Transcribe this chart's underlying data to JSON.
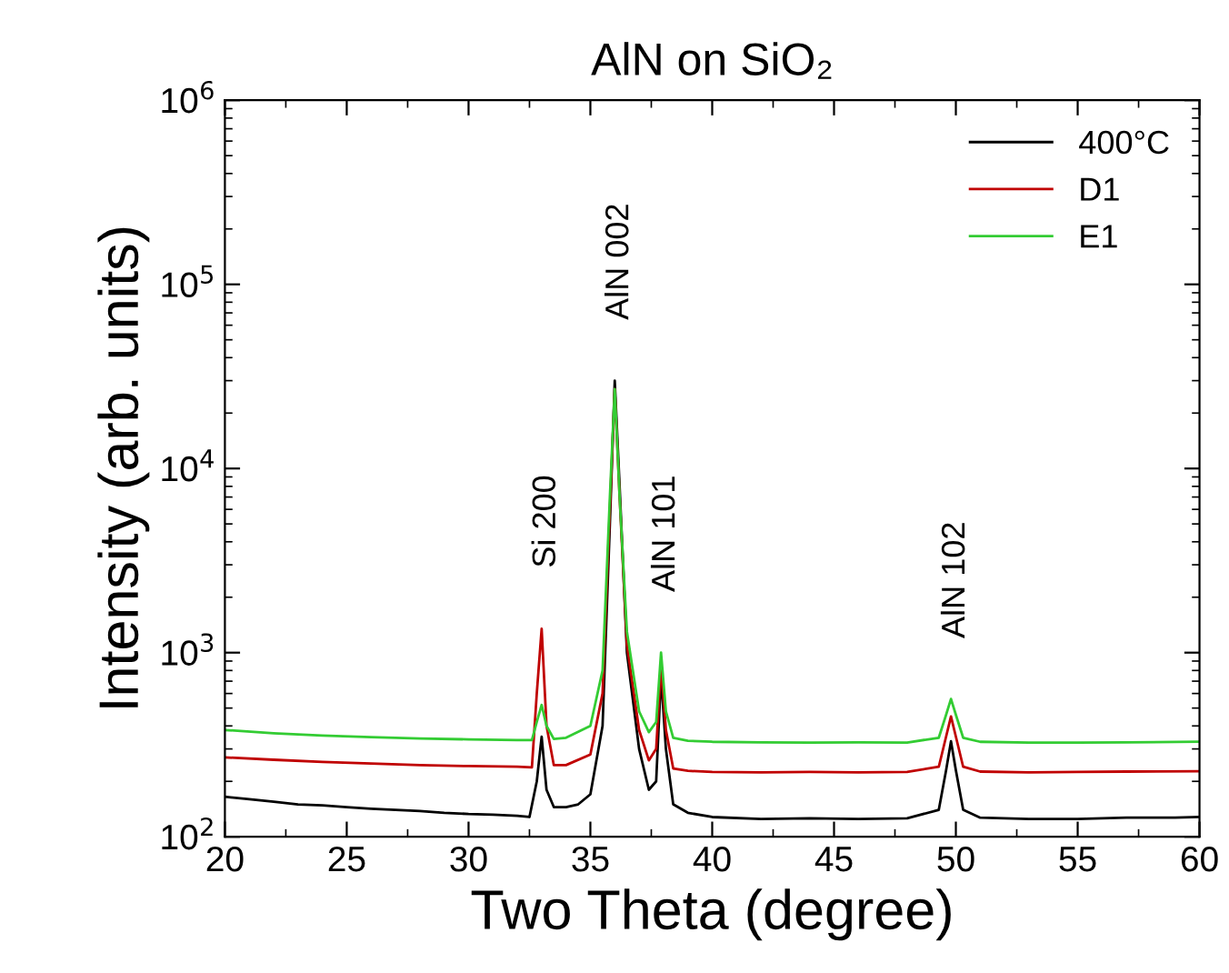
{
  "chart_data": {
    "type": "line",
    "title": "AlN on SiO₂",
    "xlabel": "Two Theta (degree)",
    "ylabel": "Intensity (arb. units)",
    "log": "y",
    "grid": false,
    "legend": "top right",
    "marker": "none",
    "line_style": "solid",
    "xlim": [
      20,
      60
    ],
    "xticks": [
      20,
      25,
      30,
      35,
      40,
      45,
      50,
      55,
      60
    ],
    "ylim": [
      100,
      1000000
    ],
    "yticks": [
      {
        "value": 100,
        "label": "10$^{2}$"
      },
      {
        "value": 1000,
        "label": "10$^{3}$"
      },
      {
        "value": 10000,
        "label": "10$^{4}$"
      },
      {
        "value": 100000,
        "label": "10$^{5}$"
      },
      {
        "value": 1000000,
        "label": "10$^{6}$"
      }
    ],
    "series": [
      {
        "name": "400°C",
        "color": "#000000",
        "x": [
          20,
          21,
          22,
          23,
          24,
          25,
          26,
          27,
          28,
          29,
          30,
          31,
          32,
          32.5,
          32.8,
          33.0,
          33.2,
          33.5,
          34,
          34.5,
          35,
          35.5,
          35.8,
          36.0,
          36.2,
          36.5,
          37,
          37.4,
          37.7,
          37.9,
          38.1,
          38.4,
          39,
          40,
          42,
          44,
          46,
          48,
          49.3,
          49.6,
          49.8,
          50.0,
          50.3,
          51,
          53,
          55,
          57,
          59,
          60
        ],
        "values": [
          165,
          160,
          155,
          150,
          148,
          145,
          142,
          140,
          138,
          135,
          133,
          132,
          130,
          128,
          200,
          350,
          180,
          145,
          145,
          150,
          170,
          400,
          5000,
          30000,
          8000,
          1000,
          300,
          180,
          200,
          750,
          300,
          150,
          135,
          128,
          125,
          126,
          125,
          126,
          140,
          230,
          330,
          230,
          140,
          127,
          125,
          125,
          127,
          127,
          128
        ]
      },
      {
        "name": "D1",
        "color": "#c00000",
        "x": [
          20,
          22,
          24,
          26,
          28,
          30,
          32,
          32.6,
          32.8,
          33.0,
          33.2,
          33.5,
          34,
          35,
          35.5,
          35.8,
          36.0,
          36.2,
          36.5,
          37,
          37.4,
          37.7,
          37.9,
          38.1,
          38.4,
          39,
          40,
          42,
          44,
          46,
          48,
          49.3,
          49.6,
          49.8,
          50.0,
          50.3,
          51,
          53,
          55,
          57,
          60
        ],
        "values": [
          270,
          262,
          255,
          250,
          245,
          242,
          240,
          238,
          600,
          1350,
          400,
          245,
          245,
          280,
          600,
          6000,
          27000,
          7000,
          1100,
          380,
          260,
          300,
          850,
          380,
          235,
          228,
          225,
          224,
          225,
          224,
          225,
          240,
          350,
          450,
          350,
          240,
          226,
          224,
          225,
          226,
          227
        ]
      },
      {
        "name": "E1",
        "color": "#33cc33",
        "x": [
          20,
          22,
          24,
          26,
          28,
          30,
          32,
          32.6,
          32.8,
          33.0,
          33.2,
          33.5,
          34,
          35,
          35.5,
          35.8,
          36.0,
          36.2,
          36.5,
          37,
          37.4,
          37.7,
          37.9,
          38.1,
          38.4,
          39,
          40,
          42,
          44,
          46,
          48,
          49.3,
          49.6,
          49.8,
          50.0,
          50.3,
          51,
          53,
          55,
          57,
          60
        ],
        "values": [
          380,
          365,
          355,
          348,
          342,
          338,
          335,
          335,
          420,
          520,
          400,
          340,
          345,
          400,
          800,
          7000,
          27000,
          7000,
          1300,
          480,
          370,
          420,
          1000,
          480,
          345,
          332,
          328,
          326,
          325,
          326,
          325,
          345,
          460,
          560,
          460,
          345,
          328,
          325,
          325,
          326,
          328
        ]
      }
    ],
    "annotations": [
      {
        "text": "Si 200",
        "x": 33.0,
        "y": 1350
      },
      {
        "text": "AlN 002",
        "x": 36.0,
        "y": 30000
      },
      {
        "text": "AlN 101",
        "x": 37.9,
        "y": 1000
      },
      {
        "text": "AlN 102",
        "x": 49.8,
        "y": 560
      }
    ]
  }
}
